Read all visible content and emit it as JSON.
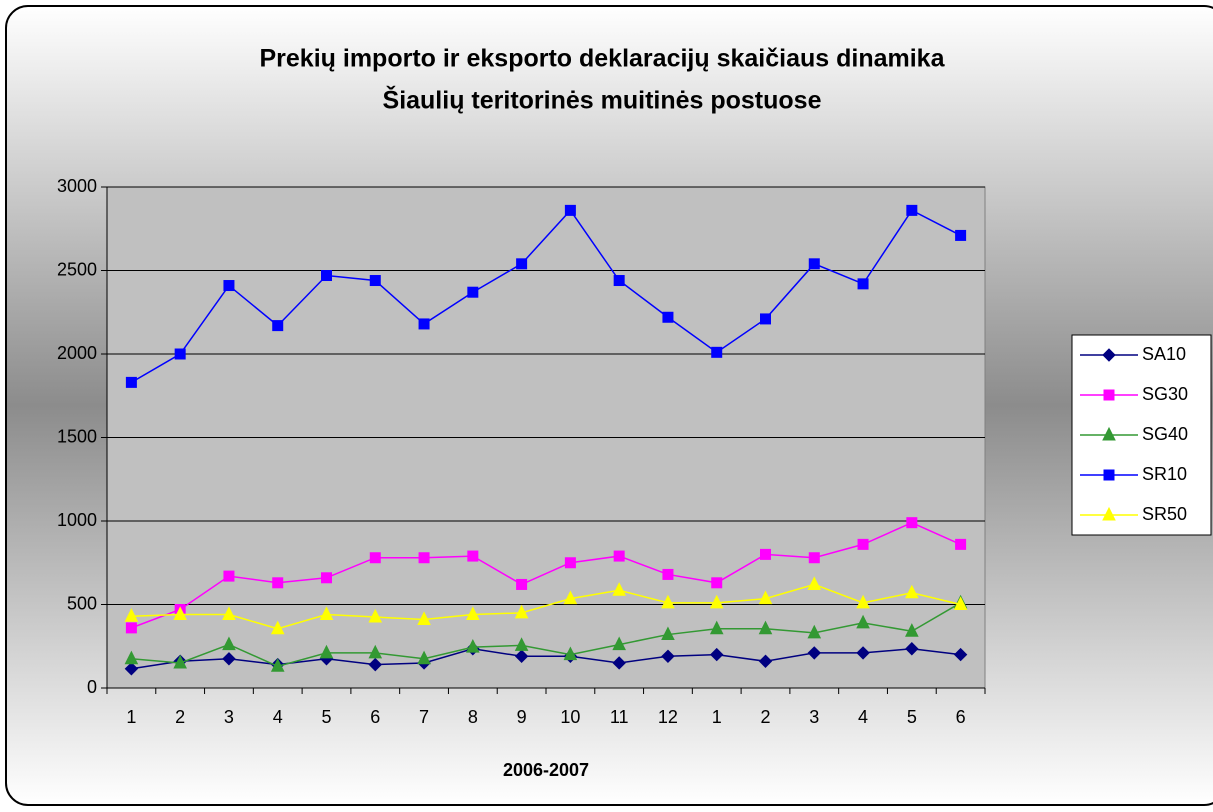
{
  "chart_data": {
    "type": "line",
    "title": [
      "Prekių importo ir eksporto deklaracijų skaičiaus dinamika",
      "Šiaulių teritorinės muitinės postuose"
    ],
    "x_label": "2006-2007",
    "categories": [
      "1",
      "2",
      "3",
      "4",
      "5",
      "6",
      "7",
      "8",
      "9",
      "10",
      "11",
      "12",
      "1",
      "2",
      "3",
      "4",
      "5",
      "6"
    ],
    "ylim": [
      0,
      3000
    ],
    "yticks": [
      0,
      500,
      1000,
      1500,
      2000,
      2500,
      3000
    ],
    "grid": true,
    "legend": "right",
    "series": [
      {
        "name": "SA10",
        "color": "#000080",
        "marker": "diamond",
        "values": [
          115,
          160,
          175,
          140,
          175,
          140,
          150,
          235,
          190,
          190,
          150,
          190,
          200,
          160,
          210,
          210,
          235,
          200
        ]
      },
      {
        "name": "SG30",
        "color": "#FF00FF",
        "marker": "square",
        "values": [
          360,
          470,
          670,
          630,
          660,
          780,
          780,
          790,
          620,
          750,
          790,
          680,
          630,
          800,
          780,
          860,
          990,
          860
        ]
      },
      {
        "name": "SG40",
        "color": "#339933",
        "marker": "triangle",
        "values": [
          175,
          150,
          260,
          130,
          210,
          210,
          175,
          245,
          255,
          200,
          260,
          320,
          355,
          355,
          330,
          390,
          340,
          510
        ]
      },
      {
        "name": "SR10",
        "color": "#0000FF",
        "marker": "square",
        "values": [
          1830,
          2000,
          2410,
          2170,
          2470,
          2440,
          2180,
          2370,
          2540,
          2860,
          2440,
          2220,
          2010,
          2210,
          2540,
          2420,
          2860,
          2710
        ]
      },
      {
        "name": "SR50",
        "color": "#FFFF00",
        "marker": "triangle",
        "values": [
          430,
          440,
          440,
          355,
          440,
          425,
          410,
          440,
          450,
          535,
          585,
          510,
          510,
          535,
          620,
          510,
          570,
          500
        ]
      }
    ]
  }
}
